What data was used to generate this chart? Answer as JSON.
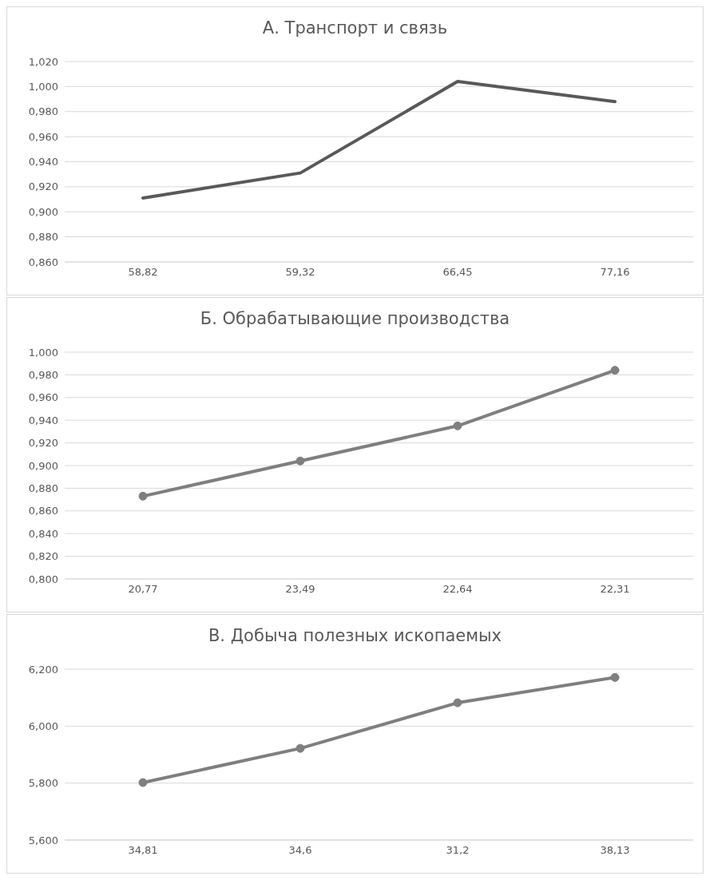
{
  "chart_data": [
    {
      "type": "line",
      "title": "А. Транспорт и связь",
      "categories": [
        "58,82",
        "59,32",
        "66,45",
        "77,16"
      ],
      "series": [
        {
          "color": "#595959",
          "values": [
            0.911,
            0.931,
            1.004,
            0.988
          ]
        }
      ],
      "ylim": [
        0.86,
        1.02
      ],
      "yticks": [
        {
          "value": 0.86,
          "label": "0,860"
        },
        {
          "value": 0.88,
          "label": "0,880"
        },
        {
          "value": 0.9,
          "label": "0,900"
        },
        {
          "value": 0.92,
          "label": "0,920"
        },
        {
          "value": 0.94,
          "label": "0,940"
        },
        {
          "value": 0.96,
          "label": "0,960"
        },
        {
          "value": 0.98,
          "label": "0,980"
        },
        {
          "value": 1.0,
          "label": "1,000"
        },
        {
          "value": 1.02,
          "label": "1,020"
        }
      ],
      "grid": "y",
      "legend": false,
      "marker": "none",
      "line_style": "solid"
    },
    {
      "type": "line",
      "title": "Б. Обрабатывающие производства",
      "categories": [
        "20,77",
        "23,49",
        "22,64",
        "22,31"
      ],
      "series": [
        {
          "color": "#7f7f7f",
          "values": [
            0.873,
            0.904,
            0.935,
            0.984
          ]
        }
      ],
      "ylim": [
        0.8,
        1.0
      ],
      "yticks": [
        {
          "value": 0.8,
          "label": "0,800"
        },
        {
          "value": 0.82,
          "label": "0,820"
        },
        {
          "value": 0.84,
          "label": "0,840"
        },
        {
          "value": 0.86,
          "label": "0,860"
        },
        {
          "value": 0.88,
          "label": "0,880"
        },
        {
          "value": 0.9,
          "label": "0,900"
        },
        {
          "value": 0.92,
          "label": "0,920"
        },
        {
          "value": 0.94,
          "label": "0,940"
        },
        {
          "value": 0.96,
          "label": "0,960"
        },
        {
          "value": 0.98,
          "label": "0,980"
        },
        {
          "value": 1.0,
          "label": "1,000"
        }
      ],
      "grid": "y",
      "legend": false,
      "marker": "circle",
      "line_style": "solid"
    },
    {
      "type": "line",
      "title": "В. Добыча полезных ископаемых",
      "categories": [
        "34,81",
        "34,6",
        "31,2",
        "38,13"
      ],
      "series": [
        {
          "color": "#7f7f7f",
          "values": [
            5.802,
            5.922,
            6.082,
            6.171
          ]
        }
      ],
      "ylim": [
        5.6,
        6.2
      ],
      "yticks": [
        {
          "value": 5.6,
          "label": "5,600"
        },
        {
          "value": 5.8,
          "label": "5,800"
        },
        {
          "value": 6.0,
          "label": "6,000"
        },
        {
          "value": 6.2,
          "label": "6,200"
        }
      ],
      "grid": "y",
      "legend": false,
      "marker": "circle",
      "line_style": "solid"
    }
  ]
}
